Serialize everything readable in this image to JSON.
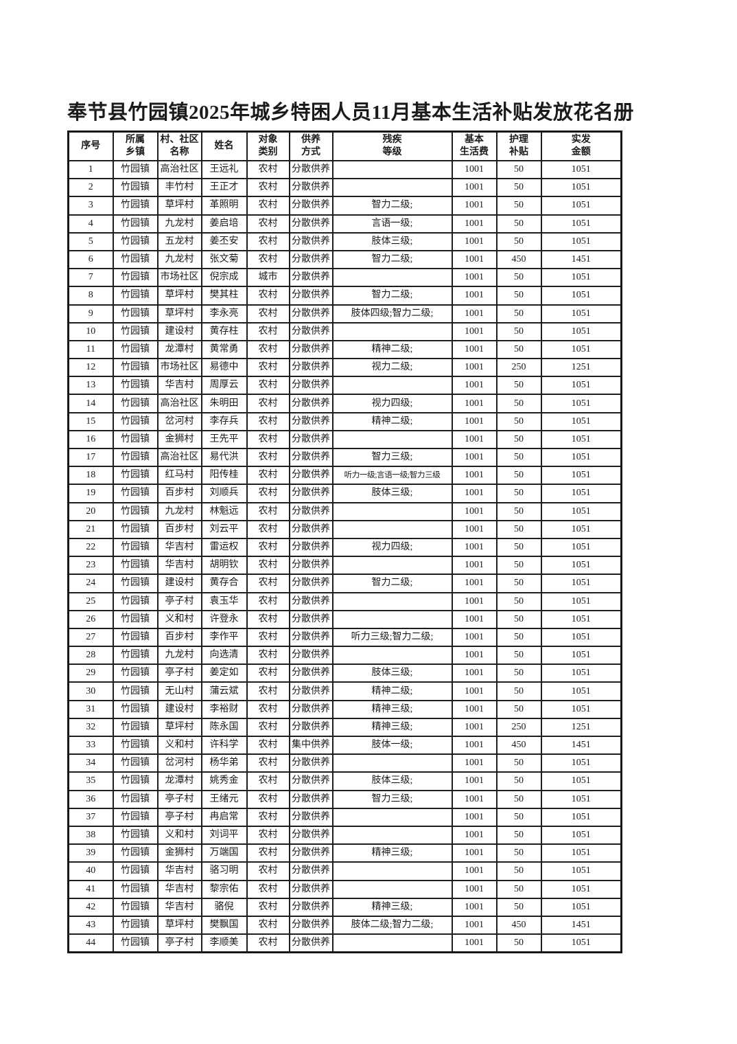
{
  "page": {
    "title": "奉节县竹园镇2025年城乡特困人员11月基本生活补贴发放花名册"
  },
  "table": {
    "headers": [
      {
        "key": "index",
        "label": "序号"
      },
      {
        "key": "township",
        "label": "所属\n乡镇"
      },
      {
        "key": "village",
        "label": "村、社区\n名称"
      },
      {
        "key": "name",
        "label": "姓名"
      },
      {
        "key": "category",
        "label": "对象\n类别"
      },
      {
        "key": "support",
        "label": "供养\n方式"
      },
      {
        "key": "disability",
        "label": "残疾\n等级"
      },
      {
        "key": "basic",
        "label": "基本\n生活费"
      },
      {
        "key": "care",
        "label": "护理\n补贴"
      },
      {
        "key": "total",
        "label": "实发\n金额"
      }
    ],
    "rows": [
      [
        1,
        "竹园镇",
        "高治社区",
        "王远礼",
        "农村",
        "分散供养",
        "",
        1001,
        50,
        1051
      ],
      [
        2,
        "竹园镇",
        "丰竹村",
        "王正才",
        "农村",
        "分散供养",
        "",
        1001,
        50,
        1051
      ],
      [
        3,
        "竹园镇",
        "草坪村",
        "革照明",
        "农村",
        "分散供养",
        "智力二级;",
        1001,
        50,
        1051
      ],
      [
        4,
        "竹园镇",
        "九龙村",
        "姜启培",
        "农村",
        "分散供养",
        "言语一级;",
        1001,
        50,
        1051
      ],
      [
        5,
        "竹园镇",
        "五龙村",
        "姜丕安",
        "农村",
        "分散供养",
        "肢体三级;",
        1001,
        50,
        1051
      ],
      [
        6,
        "竹园镇",
        "九龙村",
        "张文菊",
        "农村",
        "分散供养",
        "智力二级;",
        1001,
        450,
        1451
      ],
      [
        7,
        "竹园镇",
        "市场社区",
        "倪宗成",
        "城市",
        "分散供养",
        "",
        1001,
        50,
        1051
      ],
      [
        8,
        "竹园镇",
        "草坪村",
        "樊其柱",
        "农村",
        "分散供养",
        "智力二级;",
        1001,
        50,
        1051
      ],
      [
        9,
        "竹园镇",
        "草坪村",
        "李永亮",
        "农村",
        "分散供养",
        "肢体四级;智力二级;",
        1001,
        50,
        1051
      ],
      [
        10,
        "竹园镇",
        "建设村",
        "黄存柱",
        "农村",
        "分散供养",
        "",
        1001,
        50,
        1051
      ],
      [
        11,
        "竹园镇",
        "龙潭村",
        "黄常勇",
        "农村",
        "分散供养",
        "精神二级;",
        1001,
        50,
        1051
      ],
      [
        12,
        "竹园镇",
        "市场社区",
        "易德中",
        "农村",
        "分散供养",
        "视力二级;",
        1001,
        250,
        1251
      ],
      [
        13,
        "竹园镇",
        "华吉村",
        "周厚云",
        "农村",
        "分散供养",
        "",
        1001,
        50,
        1051
      ],
      [
        14,
        "竹园镇",
        "高治社区",
        "朱明田",
        "农村",
        "分散供养",
        "视力四级;",
        1001,
        50,
        1051
      ],
      [
        15,
        "竹园镇",
        "岔河村",
        "李存兵",
        "农村",
        "分散供养",
        "精神二级;",
        1001,
        50,
        1051
      ],
      [
        16,
        "竹园镇",
        "金狮村",
        "王先平",
        "农村",
        "分散供养",
        "",
        1001,
        50,
        1051
      ],
      [
        17,
        "竹园镇",
        "高治社区",
        "易代洪",
        "农村",
        "分散供养",
        "智力三级;",
        1001,
        50,
        1051
      ],
      [
        18,
        "竹园镇",
        "红马村",
        "阳传桂",
        "农村",
        "分散供养",
        "听力一级;言语一级;智力三级",
        1001,
        50,
        1051
      ],
      [
        19,
        "竹园镇",
        "百步村",
        "刘顺兵",
        "农村",
        "分散供养",
        "肢体三级;",
        1001,
        50,
        1051
      ],
      [
        20,
        "竹园镇",
        "九龙村",
        "林魁远",
        "农村",
        "分散供养",
        "",
        1001,
        50,
        1051
      ],
      [
        21,
        "竹园镇",
        "百步村",
        "刘云平",
        "农村",
        "分散供养",
        "",
        1001,
        50,
        1051
      ],
      [
        22,
        "竹园镇",
        "华吉村",
        "雷运权",
        "农村",
        "分散供养",
        "视力四级;",
        1001,
        50,
        1051
      ],
      [
        23,
        "竹园镇",
        "华吉村",
        "胡明钦",
        "农村",
        "分散供养",
        "",
        1001,
        50,
        1051
      ],
      [
        24,
        "竹园镇",
        "建设村",
        "黄存合",
        "农村",
        "分散供养",
        "智力二级;",
        1001,
        50,
        1051
      ],
      [
        25,
        "竹园镇",
        "亭子村",
        "袁玉华",
        "农村",
        "分散供养",
        "",
        1001,
        50,
        1051
      ],
      [
        26,
        "竹园镇",
        "义和村",
        "许登永",
        "农村",
        "分散供养",
        "",
        1001,
        50,
        1051
      ],
      [
        27,
        "竹园镇",
        "百步村",
        "李作平",
        "农村",
        "分散供养",
        "听力三级;智力二级;",
        1001,
        50,
        1051
      ],
      [
        28,
        "竹园镇",
        "九龙村",
        "向选清",
        "农村",
        "分散供养",
        "",
        1001,
        50,
        1051
      ],
      [
        29,
        "竹园镇",
        "亭子村",
        "姜定如",
        "农村",
        "分散供养",
        "肢体三级;",
        1001,
        50,
        1051
      ],
      [
        30,
        "竹园镇",
        "无山村",
        "蒲云斌",
        "农村",
        "分散供养",
        "精神二级;",
        1001,
        50,
        1051
      ],
      [
        31,
        "竹园镇",
        "建设村",
        "李裕财",
        "农村",
        "分散供养",
        "精神三级;",
        1001,
        50,
        1051
      ],
      [
        32,
        "竹园镇",
        "草坪村",
        "陈永国",
        "农村",
        "分散供养",
        "精神三级;",
        1001,
        250,
        1251
      ],
      [
        33,
        "竹园镇",
        "义和村",
        "许科学",
        "农村",
        "集中供养",
        "肢体一级;",
        1001,
        450,
        1451
      ],
      [
        34,
        "竹园镇",
        "岔河村",
        "杨华弟",
        "农村",
        "分散供养",
        "",
        1001,
        50,
        1051
      ],
      [
        35,
        "竹园镇",
        "龙潭村",
        "姚秀金",
        "农村",
        "分散供养",
        "肢体三级;",
        1001,
        50,
        1051
      ],
      [
        36,
        "竹园镇",
        "亭子村",
        "王绪元",
        "农村",
        "分散供养",
        "智力三级;",
        1001,
        50,
        1051
      ],
      [
        37,
        "竹园镇",
        "亭子村",
        "冉启常",
        "农村",
        "分散供养",
        "",
        1001,
        50,
        1051
      ],
      [
        38,
        "竹园镇",
        "义和村",
        "刘词平",
        "农村",
        "分散供养",
        "",
        1001,
        50,
        1051
      ],
      [
        39,
        "竹园镇",
        "金狮村",
        "万端国",
        "农村",
        "分散供养",
        "精神三级;",
        1001,
        50,
        1051
      ],
      [
        40,
        "竹园镇",
        "华吉村",
        "骆习明",
        "农村",
        "分散供养",
        "",
        1001,
        50,
        1051
      ],
      [
        41,
        "竹园镇",
        "华吉村",
        "黎宗佑",
        "农村",
        "分散供养",
        "",
        1001,
        50,
        1051
      ],
      [
        42,
        "竹园镇",
        "华吉村",
        "骆倪",
        "农村",
        "分散供养",
        "精神三级;",
        1001,
        50,
        1051
      ],
      [
        43,
        "竹园镇",
        "草坪村",
        "樊飘国",
        "农村",
        "分散供养",
        "肢体二级;智力二级;",
        1001,
        450,
        1451
      ],
      [
        44,
        "竹园镇",
        "亭子村",
        "李顺美",
        "农村",
        "分散供养",
        "",
        1001,
        50,
        1051
      ]
    ]
  }
}
